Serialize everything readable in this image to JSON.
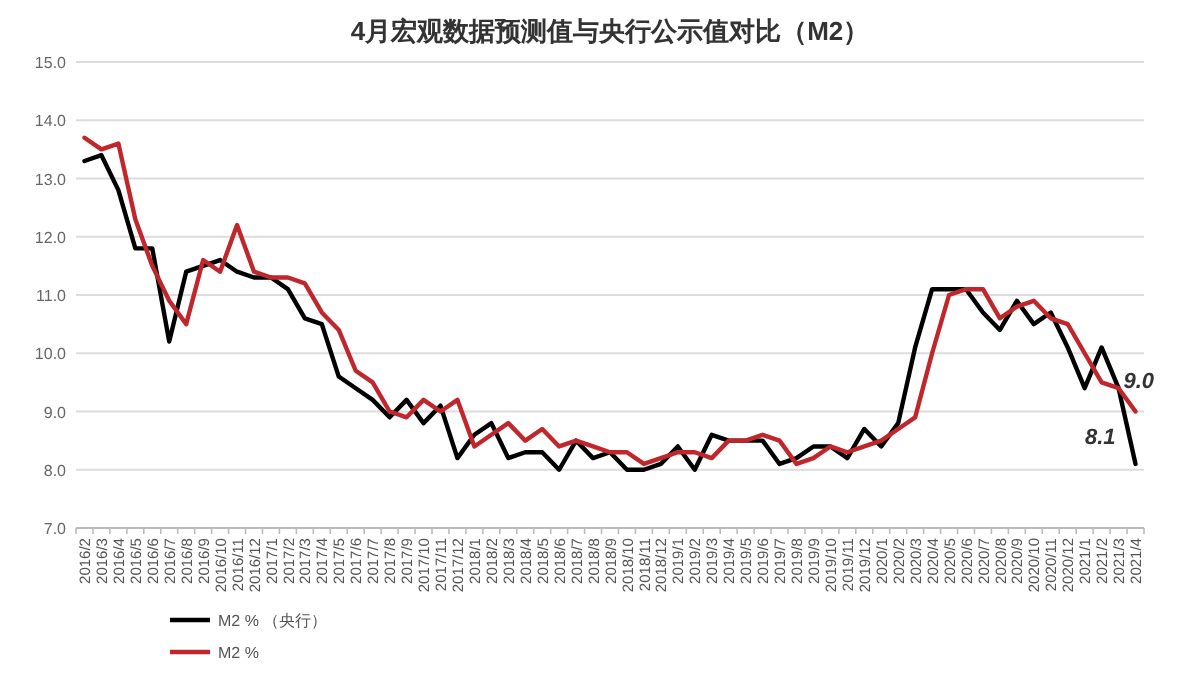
{
  "chart_data": {
    "type": "line",
    "title": "4月宏观数据预测值与央行公示值对比（M2）",
    "categories": [
      "2016/2",
      "2016/3",
      "2016/4",
      "2016/5",
      "2016/6",
      "2016/7",
      "2016/8",
      "2016/9",
      "2016/10",
      "2016/11",
      "2016/12",
      "2017/1",
      "2017/2",
      "2017/3",
      "2017/4",
      "2017/5",
      "2017/6",
      "2017/7",
      "2017/8",
      "2017/9",
      "2017/10",
      "2017/11",
      "2017/12",
      "2018/1",
      "2018/2",
      "2018/3",
      "2018/4",
      "2018/5",
      "2018/6",
      "2018/7",
      "2018/8",
      "2018/9",
      "2018/10",
      "2018/11",
      "2018/12",
      "2019/1",
      "2019/2",
      "2019/3",
      "2019/4",
      "2019/5",
      "2019/6",
      "2019/7",
      "2019/8",
      "2019/9",
      "2019/10",
      "2019/11",
      "2019/12",
      "2020/1",
      "2020/2",
      "2020/3",
      "2020/4",
      "2020/5",
      "2020/6",
      "2020/7",
      "2020/8",
      "2020/9",
      "2020/10",
      "2020/11",
      "2020/12",
      "2021/1",
      "2021/2",
      "2021/3",
      "2021/4"
    ],
    "series": [
      {
        "name": "M2 % （央行）",
        "color": "#000000",
        "values": [
          13.3,
          13.4,
          12.8,
          11.8,
          11.8,
          10.2,
          11.4,
          11.5,
          11.6,
          11.4,
          11.3,
          11.3,
          11.1,
          10.6,
          10.5,
          9.6,
          9.4,
          9.2,
          8.9,
          9.2,
          8.8,
          9.1,
          8.2,
          8.6,
          8.8,
          8.2,
          8.3,
          8.3,
          8.0,
          8.5,
          8.2,
          8.3,
          8.0,
          8.0,
          8.1,
          8.4,
          8.0,
          8.6,
          8.5,
          8.5,
          8.5,
          8.1,
          8.2,
          8.4,
          8.4,
          8.2,
          8.7,
          8.4,
          8.8,
          10.1,
          11.1,
          11.1,
          11.1,
          10.7,
          10.4,
          10.9,
          10.5,
          10.7,
          10.1,
          9.4,
          10.1,
          9.4,
          8.1
        ]
      },
      {
        "name": "M2 %",
        "color": "#c0272d",
        "values": [
          13.7,
          13.5,
          13.6,
          12.3,
          11.5,
          10.9,
          10.5,
          11.6,
          11.4,
          12.2,
          11.4,
          11.3,
          11.3,
          11.2,
          10.7,
          10.4,
          9.7,
          9.5,
          9.0,
          8.9,
          9.2,
          9.0,
          9.2,
          8.4,
          8.6,
          8.8,
          8.5,
          8.7,
          8.4,
          8.5,
          8.4,
          8.3,
          8.3,
          8.1,
          8.2,
          8.3,
          8.3,
          8.2,
          8.5,
          8.5,
          8.6,
          8.5,
          8.1,
          8.2,
          8.4,
          8.3,
          8.4,
          8.5,
          8.7,
          8.9,
          10.0,
          11.0,
          11.1,
          11.1,
          10.6,
          10.8,
          10.9,
          10.6,
          10.5,
          10.0,
          9.5,
          9.4,
          9.0
        ]
      }
    ],
    "ylim": [
      7,
      15
    ],
    "yticks": [
      {
        "value": 7,
        "label": "7.0"
      },
      {
        "value": 8,
        "label": "8.0"
      },
      {
        "value": 9,
        "label": "9.0"
      },
      {
        "value": 10,
        "label": "10.0"
      },
      {
        "value": 11,
        "label": "11.0"
      },
      {
        "value": 12,
        "label": "12.0"
      },
      {
        "value": 13,
        "label": "13.0"
      },
      {
        "value": 14,
        "label": "14.0"
      },
      {
        "value": 15,
        "label": "15.0"
      }
    ],
    "grid": "y",
    "legend": "bottom left",
    "marker": "none",
    "line_style": "solid",
    "annotations": [
      {
        "text": "9.0",
        "x": "2021/4",
        "y": 9.0
      },
      {
        "text": "8.1",
        "x": "2021/4",
        "y": 8.1
      }
    ]
  }
}
